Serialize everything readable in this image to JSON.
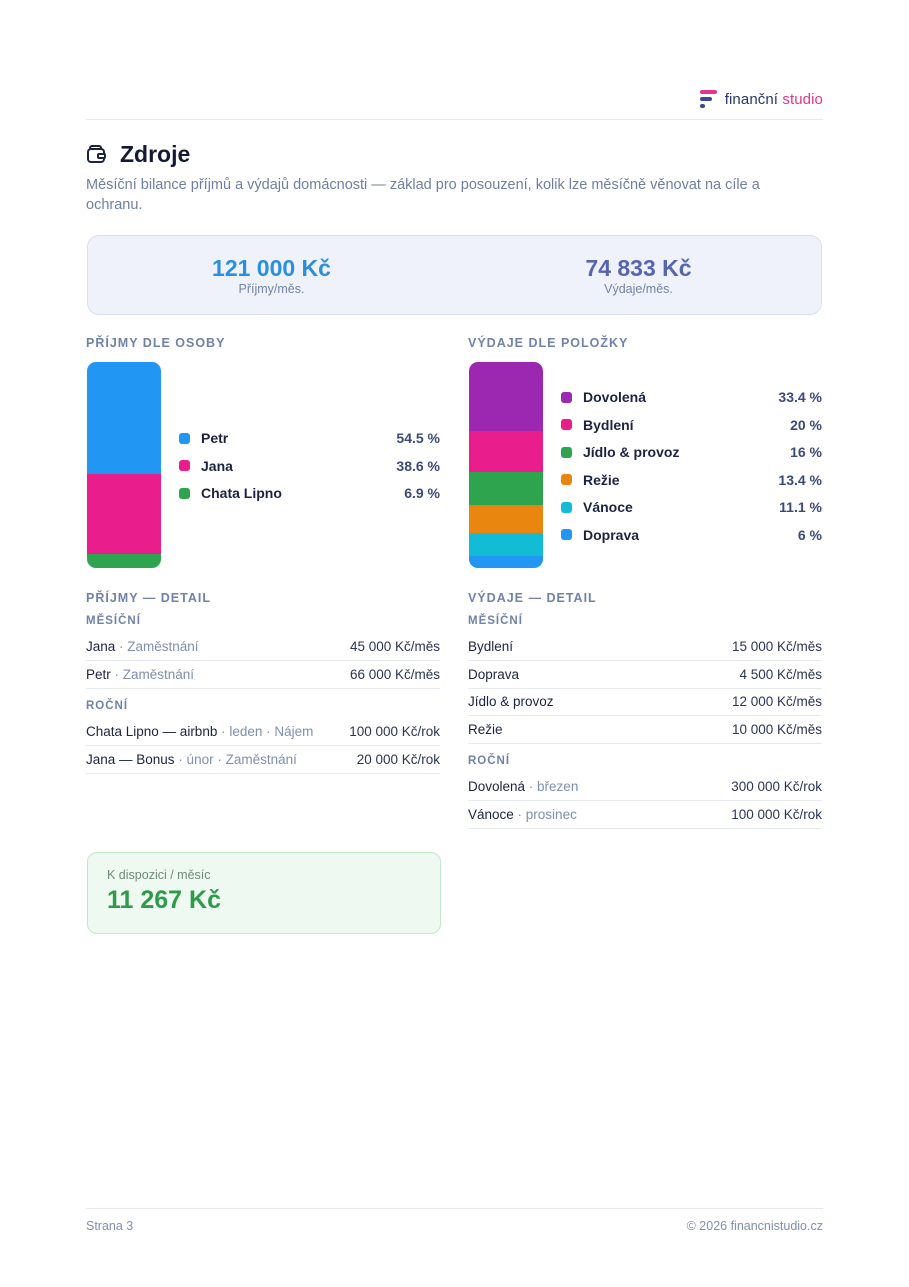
{
  "brand": {
    "word1": "finanční",
    "word2": "studio"
  },
  "header": {
    "title": "Zdroje",
    "subtitle": "Měsíční bilance příjmů a výdajů domácnosti — základ pro posouzení, kolik lze měsíčně věnovat na cíle a ochranu."
  },
  "summary": {
    "income_value": "121 000 Kč",
    "income_label": "Příjmy/měs.",
    "income_color": "#2a8fe0",
    "expense_value": "74 833 Kč",
    "expense_label": "Výdaje/měs.",
    "expense_color": "#5565b2"
  },
  "income_by_person": {
    "heading": "PŘÍJMY DLE OSOBY",
    "items": [
      {
        "name": "Petr",
        "pct_label": "54.5 %",
        "pct": 54.5,
        "color": "#2196f3"
      },
      {
        "name": "Jana",
        "pct_label": "38.6 %",
        "pct": 38.6,
        "color": "#e91e8c"
      },
      {
        "name": "Chata Lipno",
        "pct_label": "6.9 %",
        "pct": 6.9,
        "color": "#2ea44f"
      }
    ]
  },
  "expense_by_item": {
    "heading": "VÝDAJE DLE POLOŽKY",
    "items": [
      {
        "name": "Dovolená",
        "pct_label": "33.4 %",
        "pct": 33.4,
        "color": "#9c27b0"
      },
      {
        "name": "Bydlení",
        "pct_label": "20 %",
        "pct": 20,
        "color": "#e91e8c"
      },
      {
        "name": "Jídlo & provoz",
        "pct_label": "16 %",
        "pct": 16,
        "color": "#2ea44f"
      },
      {
        "name": "Režie",
        "pct_label": "13.4 %",
        "pct": 13.4,
        "color": "#e8860f"
      },
      {
        "name": "Vánoce",
        "pct_label": "11.1 %",
        "pct": 11.1,
        "color": "#12bcd4"
      },
      {
        "name": "Doprava",
        "pct_label": "6 %",
        "pct": 6,
        "color": "#2196f3"
      }
    ]
  },
  "income_detail": {
    "heading": "PŘÍJMY — DETAIL",
    "monthly_label": "MĚSÍČNÍ",
    "monthly": [
      {
        "name": "Jana",
        "meta": " · Zaměstnání",
        "value": "45 000 Kč/měs"
      },
      {
        "name": "Petr",
        "meta": " · Zaměstnání",
        "value": "66 000 Kč/měs"
      }
    ],
    "yearly_label": "ROČNÍ",
    "yearly": [
      {
        "name": "Chata Lipno — airbnb",
        "meta": " · leden · Nájem",
        "value": "100 000 Kč/rok"
      },
      {
        "name": "Jana — Bonus",
        "meta": " · únor · Zaměstnání",
        "value": "20 000 Kč/rok"
      }
    ]
  },
  "expense_detail": {
    "heading": "VÝDAJE — DETAIL",
    "monthly_label": "MĚSÍČNÍ",
    "monthly": [
      {
        "name": "Bydlení",
        "meta": "",
        "value": "15 000 Kč/měs"
      },
      {
        "name": "Doprava",
        "meta": "",
        "value": "4 500 Kč/měs"
      },
      {
        "name": "Jídlo & provoz",
        "meta": "",
        "value": "12 000 Kč/měs"
      },
      {
        "name": "Režie",
        "meta": "",
        "value": "10 000 Kč/měs"
      }
    ],
    "yearly_label": "ROČNÍ",
    "yearly": [
      {
        "name": "Dovolená",
        "meta": " · březen",
        "value": "300 000 Kč/rok"
      },
      {
        "name": "Vánoce",
        "meta": " · prosinec",
        "value": "100 000 Kč/rok"
      }
    ]
  },
  "available": {
    "label": "K dispozici / měsíc",
    "value": "11 267 Kč"
  },
  "footer": {
    "page": "Strana 3",
    "copyright": "© 2026 financnistudio.cz"
  }
}
